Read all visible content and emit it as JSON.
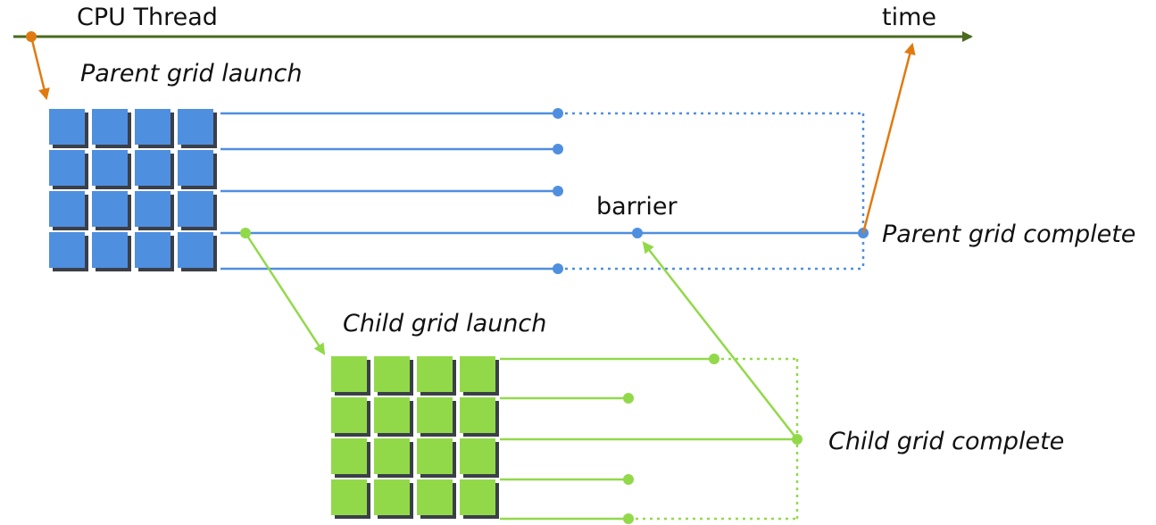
{
  "diagram": {
    "title": "CPU Thread",
    "time_label": "time",
    "labels": {
      "parent_launch": "Parent grid launch",
      "barrier": "barrier",
      "parent_complete": "Parent grid complete",
      "child_launch": "Child grid launch",
      "child_complete": "Child grid complete"
    },
    "parent_grid": {
      "rows": 4,
      "cols": 4,
      "threads": 5
    },
    "child_grid": {
      "rows": 4,
      "cols": 4,
      "threads": 5
    }
  },
  "colors": {
    "timeline": "#4a6a1e",
    "cpu_arrow": "#e07a10",
    "parent": "#4f8fe0",
    "parent_shadow": "#3a3f48",
    "child": "#92d94a",
    "child_shadow": "#3a3f48"
  }
}
